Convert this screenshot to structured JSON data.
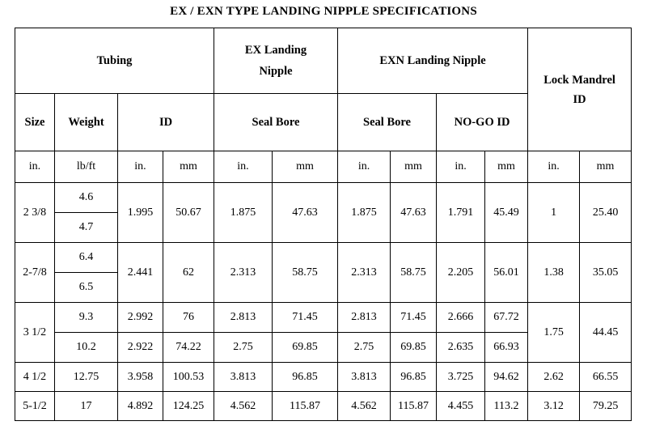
{
  "title": "EX / EXN TYPE LANDING NIPPLE SPECIFICATIONS",
  "headers": {
    "tubing": "Tubing",
    "ex_landing_nipple_line1": "EX Landing",
    "ex_landing_nipple_line2": "Nipple",
    "exn_landing_nipple": "EXN Landing Nipple",
    "lock_mandrel_line1": "Lock Mandrel",
    "lock_mandrel_line2": "ID",
    "size": "Size",
    "weight": "Weight",
    "id": "ID",
    "seal_bore_ex": "Seal Bore",
    "seal_bore_exn": "Seal Bore",
    "nogo_id": "NO-GO ID"
  },
  "units": [
    "in.",
    "lb/ft",
    "in.",
    "mm",
    "in.",
    "mm",
    "in.",
    "mm",
    "in.",
    "mm",
    "in.",
    "mm"
  ],
  "rows": [
    {
      "size": "2 3/8",
      "weight": "4.6",
      "id_in": "1.995",
      "id_mm": "50.67",
      "ex_in": "1.875",
      "ex_mm": "47.63",
      "exn_in": "1.875",
      "exn_mm": "47.63",
      "nogo_in": "1.791",
      "nogo_mm": "45.49",
      "lm_in": "1",
      "lm_mm": "25.40"
    },
    {
      "weight": "4.7"
    },
    {
      "size": "2-7/8",
      "weight": "6.4",
      "id_in": "2.441",
      "id_mm": "62",
      "ex_in": "2.313",
      "ex_mm": "58.75",
      "exn_in": "2.313",
      "exn_mm": "58.75",
      "nogo_in": "2.205",
      "nogo_mm": "56.01",
      "lm_in": "1.38",
      "lm_mm": "35.05"
    },
    {
      "weight": "6.5"
    },
    {
      "size": "3 1/2",
      "weight": "9.3",
      "id_in": "2.992",
      "id_mm": "76",
      "ex_in": "2.813",
      "ex_mm": "71.45",
      "exn_in": "2.813",
      "exn_mm": "71.45",
      "nogo_in": "2.666",
      "nogo_mm": "67.72",
      "lm_in": "1.75",
      "lm_mm": "44.45"
    },
    {
      "weight": "10.2",
      "id_in": "2.922",
      "id_mm": "74.22",
      "ex_in": "2.75",
      "ex_mm": "69.85",
      "exn_in": "2.75",
      "exn_mm": "69.85",
      "nogo_in": "2.635",
      "nogo_mm": "66.93"
    },
    {
      "size": "4 1/2",
      "weight": "12.75",
      "id_in": "3.958",
      "id_mm": "100.53",
      "ex_in": "3.813",
      "ex_mm": "96.85",
      "exn_in": "3.813",
      "exn_mm": "96.85",
      "nogo_in": "3.725",
      "nogo_mm": "94.62",
      "lm_in": "2.62",
      "lm_mm": "66.55"
    },
    {
      "size": "5-1/2",
      "weight": "17",
      "id_in": "4.892",
      "id_mm": "124.25",
      "ex_in": "4.562",
      "ex_mm": "115.87",
      "exn_in": "4.562",
      "exn_mm": "115.87",
      "nogo_in": "4.455",
      "nogo_mm": "113.2",
      "lm_in": "3.12",
      "lm_mm": "79.25"
    }
  ]
}
